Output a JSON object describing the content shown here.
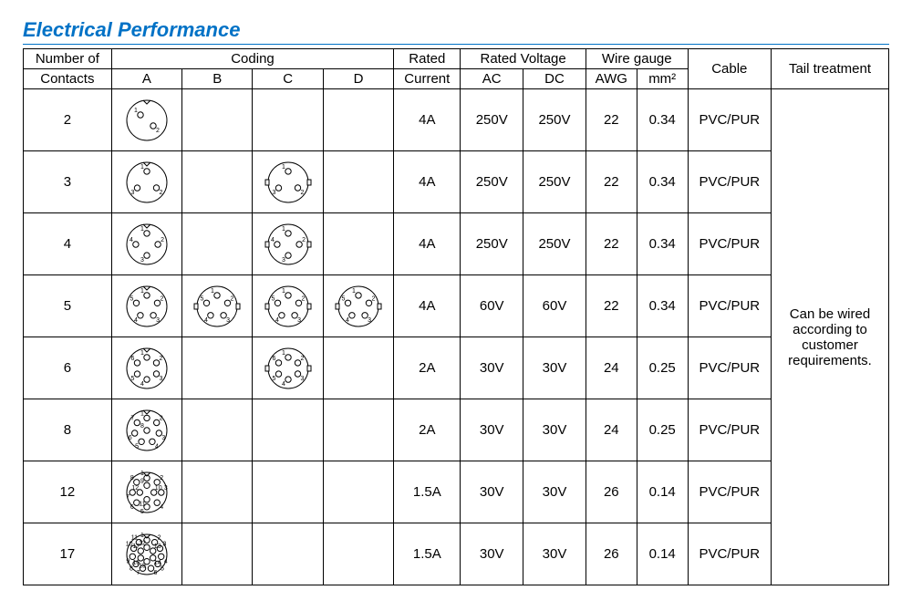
{
  "title": "Electrical Performance",
  "title_color": "#0072c6",
  "headers": {
    "num_contacts_l1": "Number of",
    "num_contacts_l2": "Contacts",
    "coding": "Coding",
    "coding_cols": [
      "A",
      "B",
      "C",
      "D"
    ],
    "rated_l1": "Rated",
    "rated_l2": "Current",
    "voltage": "Rated Voltage",
    "voltage_ac": "AC",
    "voltage_dc": "DC",
    "wire": "Wire gauge",
    "wire_awg": "AWG",
    "wire_mm2": "mm²",
    "cable": "Cable",
    "tail": "Tail treatment"
  },
  "rows": [
    {
      "contacts": "2",
      "coding": {
        "A": {
          "pins": 2,
          "key": false
        }
      },
      "current": "4A",
      "ac": "250V",
      "dc": "250V",
      "awg": "22",
      "mm2": "0.34",
      "cable": "PVC/PUR"
    },
    {
      "contacts": "3",
      "coding": {
        "A": {
          "pins": 3,
          "key": false
        },
        "C": {
          "pins": 3,
          "key": true
        }
      },
      "current": "4A",
      "ac": "250V",
      "dc": "250V",
      "awg": "22",
      "mm2": "0.34",
      "cable": "PVC/PUR"
    },
    {
      "contacts": "4",
      "coding": {
        "A": {
          "pins": 4,
          "key": false
        },
        "C": {
          "pins": 4,
          "key": true
        }
      },
      "current": "4A",
      "ac": "250V",
      "dc": "250V",
      "awg": "22",
      "mm2": "0.34",
      "cable": "PVC/PUR"
    },
    {
      "contacts": "5",
      "coding": {
        "A": {
          "pins": 5,
          "key": false
        },
        "B": {
          "pins": 5,
          "key": true
        },
        "C": {
          "pins": 5,
          "key": true
        },
        "D": {
          "pins": 5,
          "key": true
        }
      },
      "current": "4A",
      "ac": "60V",
      "dc": "60V",
      "awg": "22",
      "mm2": "0.34",
      "cable": "PVC/PUR"
    },
    {
      "contacts": "6",
      "coding": {
        "A": {
          "pins": 6,
          "key": false
        },
        "C": {
          "pins": 6,
          "key": true
        }
      },
      "current": "2A",
      "ac": "30V",
      "dc": "30V",
      "awg": "24",
      "mm2": "0.25",
      "cable": "PVC/PUR"
    },
    {
      "contacts": "8",
      "coding": {
        "A": {
          "pins": 8,
          "key": false
        }
      },
      "current": "2A",
      "ac": "30V",
      "dc": "30V",
      "awg": "24",
      "mm2": "0.25",
      "cable": "PVC/PUR"
    },
    {
      "contacts": "12",
      "coding": {
        "A": {
          "pins": 12,
          "key": false
        }
      },
      "current": "1.5A",
      "ac": "30V",
      "dc": "30V",
      "awg": "26",
      "mm2": "0.14",
      "cable": "PVC/PUR"
    },
    {
      "contacts": "17",
      "coding": {
        "A": {
          "pins": 17,
          "key": false
        }
      },
      "current": "1.5A",
      "ac": "30V",
      "dc": "30V",
      "awg": "26",
      "mm2": "0.14",
      "cable": "PVC/PUR"
    }
  ],
  "tail_text": "Can be wired according to customer requirements.",
  "diagram_style": {
    "size": 56,
    "circle_r": 22,
    "pin_r": 3.2,
    "stroke": "#000000",
    "stroke_width": 1,
    "label_fontsize": 7
  }
}
